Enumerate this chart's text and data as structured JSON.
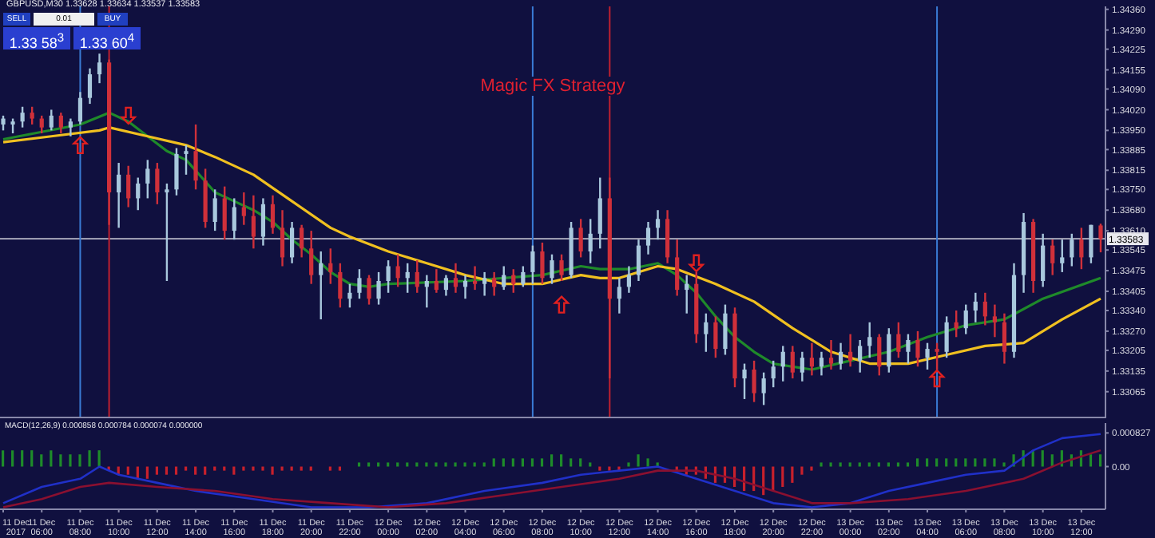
{
  "chart_data": [
    {
      "type": "candlestick",
      "title": "Magic FX Strategy",
      "annotations": [
        "GBPUSD,M30 1.33628 1.33634 1.33537 1.33583",
        "SELL",
        "0.01",
        "BUY",
        "1.33 58$^{3}$",
        "1.33 60$^{4}$"
      ],
      "x": [
        "2017-12-11T04:00",
        "2017-12-11T04:30",
        "2017-12-11T05:00",
        "2017-12-11T05:30",
        "2017-12-11T06:00",
        "2017-12-11T06:30",
        "2017-12-11T07:00",
        "2017-12-11T07:30",
        "2017-12-11T08:00",
        "2017-12-11T08:30",
        "2017-12-11T09:00",
        "2017-12-11T09:30",
        "2017-12-11T10:00",
        "2017-12-11T10:30",
        "2017-12-11T11:00",
        "2017-12-11T11:30",
        "2017-12-11T12:00",
        "2017-12-11T12:30",
        "2017-12-11T13:00",
        "2017-12-11T13:30",
        "2017-12-11T14:00",
        "2017-12-11T14:30",
        "2017-12-11T15:00",
        "2017-12-11T15:30",
        "2017-12-11T16:00",
        "2017-12-11T16:30",
        "2017-12-11T17:00",
        "2017-12-11T17:30",
        "2017-12-11T18:00",
        "2017-12-11T18:30",
        "2017-12-11T19:00",
        "2017-12-11T19:30",
        "2017-12-11T20:00",
        "2017-12-11T20:30",
        "2017-12-11T21:00",
        "2017-12-11T21:30",
        "2017-12-11T22:00",
        "2017-12-11T22:30",
        "2017-12-11T23:00",
        "2017-12-11T23:30",
        "2017-12-12T00:00",
        "2017-12-12T00:30",
        "2017-12-12T01:00",
        "2017-12-12T01:30",
        "2017-12-12T02:00",
        "2017-12-12T02:30",
        "2017-12-12T03:00",
        "2017-12-12T03:30",
        "2017-12-12T04:00",
        "2017-12-12T04:30",
        "2017-12-12T05:00",
        "2017-12-12T05:30",
        "2017-12-12T06:00",
        "2017-12-12T06:30",
        "2017-12-12T07:00",
        "2017-12-12T07:30",
        "2017-12-12T08:00",
        "2017-12-12T08:30",
        "2017-12-12T09:00",
        "2017-12-12T09:30",
        "2017-12-12T10:00",
        "2017-12-12T10:30",
        "2017-12-12T11:00",
        "2017-12-12T11:30",
        "2017-12-12T12:00",
        "2017-12-12T12:30",
        "2017-12-12T13:00",
        "2017-12-12T13:30",
        "2017-12-12T14:00",
        "2017-12-12T14:30",
        "2017-12-12T15:00",
        "2017-12-12T15:30",
        "2017-12-12T16:00",
        "2017-12-12T16:30",
        "2017-12-12T17:00",
        "2017-12-12T17:30",
        "2017-12-12T18:00",
        "2017-12-12T18:30",
        "2017-12-12T19:00",
        "2017-12-12T19:30",
        "2017-12-12T20:00",
        "2017-12-12T20:30",
        "2017-12-12T21:00",
        "2017-12-12T21:30",
        "2017-12-12T22:00",
        "2017-12-12T22:30",
        "2017-12-12T23:00",
        "2017-12-12T23:30",
        "2017-12-13T00:00",
        "2017-12-13T00:30",
        "2017-12-13T01:00",
        "2017-12-13T01:30",
        "2017-12-13T02:00",
        "2017-12-13T02:30",
        "2017-12-13T03:00",
        "2017-12-13T03:30",
        "2017-12-13T04:00",
        "2017-12-13T04:30",
        "2017-12-13T05:00",
        "2017-12-13T05:30",
        "2017-12-13T06:00",
        "2017-12-13T06:30",
        "2017-12-13T07:00",
        "2017-12-13T07:30",
        "2017-12-13T08:00",
        "2017-12-13T08:30",
        "2017-12-13T09:00",
        "2017-12-13T09:30",
        "2017-12-13T10:00",
        "2017-12-13T10:30",
        "2017-12-13T11:00",
        "2017-12-13T11:30",
        "2017-12-13T12:00",
        "2017-12-13T12:30",
        "2017-12-13T13:00"
      ],
      "ohlc": [
        [
          1.3397,
          1.34,
          1.3395,
          1.3399
        ],
        [
          1.3397,
          1.3399,
          1.3394,
          1.3398
        ],
        [
          1.3398,
          1.3403,
          1.3396,
          1.3401
        ],
        [
          1.3401,
          1.3403,
          1.3397,
          1.3399
        ],
        [
          1.3399,
          1.34,
          1.3394,
          1.3396
        ],
        [
          1.3396,
          1.3402,
          1.3395,
          1.34
        ],
        [
          1.34,
          1.3401,
          1.3394,
          1.3396
        ],
        [
          1.3396,
          1.3399,
          1.3393,
          1.3398
        ],
        [
          1.3398,
          1.3408,
          1.3397,
          1.3406
        ],
        [
          1.3406,
          1.3416,
          1.3404,
          1.3414
        ],
        [
          1.3414,
          1.3421,
          1.3411,
          1.3418
        ],
        [
          1.3418,
          1.3419,
          1.3363,
          1.3374
        ],
        [
          1.3374,
          1.3384,
          1.3362,
          1.338
        ],
        [
          1.338,
          1.3383,
          1.3369,
          1.3372
        ],
        [
          1.3372,
          1.3379,
          1.3368,
          1.3377
        ],
        [
          1.3377,
          1.3385,
          1.3372,
          1.3382
        ],
        [
          1.3382,
          1.3384,
          1.337,
          1.3374
        ],
        [
          1.3374,
          1.3377,
          1.3344,
          1.3375
        ],
        [
          1.3375,
          1.3389,
          1.3373,
          1.3387
        ],
        [
          1.3387,
          1.339,
          1.338,
          1.3388
        ],
        [
          1.3388,
          1.3397,
          1.3375,
          1.3378
        ],
        [
          1.3378,
          1.3382,
          1.3362,
          1.3364
        ],
        [
          1.3364,
          1.3375,
          1.3361,
          1.3372
        ],
        [
          1.3372,
          1.3376,
          1.3358,
          1.3361
        ],
        [
          1.3361,
          1.3372,
          1.3358,
          1.3369
        ],
        [
          1.3369,
          1.3374,
          1.3363,
          1.3366
        ],
        [
          1.3366,
          1.3373,
          1.3355,
          1.3359
        ],
        [
          1.3359,
          1.3372,
          1.3356,
          1.337
        ],
        [
          1.337,
          1.3373,
          1.336,
          1.3362
        ],
        [
          1.3362,
          1.3368,
          1.3349,
          1.3352
        ],
        [
          1.3352,
          1.3364,
          1.335,
          1.3362
        ],
        [
          1.3362,
          1.3363,
          1.3352,
          1.3355
        ],
        [
          1.3355,
          1.3361,
          1.3343,
          1.3346
        ],
        [
          1.3346,
          1.3354,
          1.3331,
          1.335
        ],
        [
          1.335,
          1.3355,
          1.3343,
          1.3347
        ],
        [
          1.3347,
          1.335,
          1.3335,
          1.3338
        ],
        [
          1.3338,
          1.3343,
          1.3335,
          1.334
        ],
        [
          1.334,
          1.3348,
          1.3338,
          1.3345
        ],
        [
          1.3345,
          1.3346,
          1.3336,
          1.3338
        ],
        [
          1.3338,
          1.3347,
          1.3336,
          1.3344
        ],
        [
          1.3344,
          1.3351,
          1.334,
          1.3349
        ],
        [
          1.3349,
          1.3353,
          1.3342,
          1.3345
        ],
        [
          1.3345,
          1.335,
          1.334,
          1.3347
        ],
        [
          1.3347,
          1.3351,
          1.334,
          1.3342
        ],
        [
          1.3342,
          1.3346,
          1.3335,
          1.3344
        ],
        [
          1.3344,
          1.3348,
          1.334,
          1.3341
        ],
        [
          1.3341,
          1.3346,
          1.3339,
          1.3345
        ],
        [
          1.3345,
          1.335,
          1.334,
          1.3342
        ],
        [
          1.3342,
          1.3346,
          1.3338,
          1.3344
        ],
        [
          1.3344,
          1.3349,
          1.3341,
          1.3343
        ],
        [
          1.3343,
          1.3347,
          1.3339,
          1.3345
        ],
        [
          1.3345,
          1.3347,
          1.3339,
          1.3342
        ],
        [
          1.3342,
          1.3349,
          1.3341,
          1.3346
        ],
        [
          1.3346,
          1.3348,
          1.334,
          1.3343
        ],
        [
          1.3343,
          1.3349,
          1.3342,
          1.3347
        ],
        [
          1.3347,
          1.3356,
          1.3343,
          1.3354
        ],
        [
          1.3354,
          1.3357,
          1.3343,
          1.3345
        ],
        [
          1.3345,
          1.3353,
          1.3343,
          1.3351
        ],
        [
          1.3351,
          1.3353,
          1.3344,
          1.3346
        ],
        [
          1.3346,
          1.3364,
          1.3345,
          1.3362
        ],
        [
          1.3362,
          1.3365,
          1.3352,
          1.3354
        ],
        [
          1.3354,
          1.3365,
          1.335,
          1.336
        ],
        [
          1.336,
          1.3379,
          1.3355,
          1.3372
        ],
        [
          1.3372,
          1.3379,
          1.3311,
          1.3338
        ],
        [
          1.3338,
          1.3345,
          1.3333,
          1.3342
        ],
        [
          1.3342,
          1.3349,
          1.334,
          1.3346
        ],
        [
          1.3346,
          1.3358,
          1.3344,
          1.3356
        ],
        [
          1.3356,
          1.3364,
          1.3353,
          1.3362
        ],
        [
          1.3362,
          1.3368,
          1.3358,
          1.3365
        ],
        [
          1.3365,
          1.3368,
          1.335,
          1.3352
        ],
        [
          1.3352,
          1.3358,
          1.3339,
          1.3341
        ],
        [
          1.3341,
          1.3346,
          1.3333,
          1.3343
        ],
        [
          1.3343,
          1.3347,
          1.3323,
          1.3326
        ],
        [
          1.3326,
          1.3333,
          1.332,
          1.333
        ],
        [
          1.333,
          1.3332,
          1.3318,
          1.3321
        ],
        [
          1.3321,
          1.3336,
          1.3319,
          1.3333
        ],
        [
          1.3333,
          1.3335,
          1.3308,
          1.3311
        ],
        [
          1.3311,
          1.3316,
          1.3304,
          1.3314
        ],
        [
          1.3314,
          1.3317,
          1.3303,
          1.3306
        ],
        [
          1.3306,
          1.3313,
          1.3302,
          1.3311
        ],
        [
          1.3311,
          1.3317,
          1.3308,
          1.3315
        ],
        [
          1.3315,
          1.3322,
          1.331,
          1.332
        ],
        [
          1.332,
          1.3322,
          1.3311,
          1.3313
        ],
        [
          1.3313,
          1.332,
          1.331,
          1.3318
        ],
        [
          1.3318,
          1.3323,
          1.3312,
          1.3315
        ],
        [
          1.3315,
          1.332,
          1.3312,
          1.3318
        ],
        [
          1.3318,
          1.3324,
          1.3314,
          1.3316
        ],
        [
          1.3316,
          1.3323,
          1.3314,
          1.332
        ],
        [
          1.332,
          1.3326,
          1.3315,
          1.3317
        ],
        [
          1.3317,
          1.3324,
          1.3313,
          1.3322
        ],
        [
          1.3322,
          1.333,
          1.3318,
          1.3325
        ],
        [
          1.3325,
          1.3326,
          1.3312,
          1.3315
        ],
        [
          1.3315,
          1.3328,
          1.3313,
          1.3326
        ],
        [
          1.3326,
          1.333,
          1.3318,
          1.332
        ],
        [
          1.332,
          1.3326,
          1.3316,
          1.3324
        ],
        [
          1.3324,
          1.3327,
          1.3315,
          1.3318
        ],
        [
          1.3318,
          1.3323,
          1.3314,
          1.3321
        ],
        [
          1.3321,
          1.3323,
          1.3314,
          1.332
        ],
        [
          1.332,
          1.3332,
          1.3318,
          1.333
        ],
        [
          1.333,
          1.3334,
          1.3325,
          1.3328
        ],
        [
          1.3328,
          1.3336,
          1.3326,
          1.3334
        ],
        [
          1.3334,
          1.334,
          1.333,
          1.3337
        ],
        [
          1.3337,
          1.334,
          1.3329,
          1.3332
        ],
        [
          1.3332,
          1.3336,
          1.3325,
          1.333
        ],
        [
          1.333,
          1.3333,
          1.3316,
          1.332
        ],
        [
          1.332,
          1.335,
          1.3318,
          1.3346
        ],
        [
          1.3346,
          1.3367,
          1.334,
          1.3364
        ],
        [
          1.3364,
          1.3365,
          1.334,
          1.3344
        ],
        [
          1.3344,
          1.336,
          1.3342,
          1.3356
        ],
        [
          1.3356,
          1.3358,
          1.3346,
          1.335
        ],
        [
          1.335,
          1.3358,
          1.3347,
          1.3352
        ],
        [
          1.3352,
          1.336,
          1.3349,
          1.3358
        ],
        [
          1.3358,
          1.3362,
          1.3348,
          1.3352
        ],
        [
          1.3352,
          1.3363,
          1.335,
          1.3363
        ],
        [
          1.33628,
          1.33634,
          1.33537,
          1.33583
        ]
      ],
      "series": [
        {
          "type": "line",
          "color": "#1f8a2a",
          "x": [
            "2017-12-11T04:00",
            "2017-12-11T08:00",
            "2017-12-11T09:30",
            "2017-12-11T10:30",
            "2017-12-11T11:30",
            "2017-12-11T12:30",
            "2017-12-11T13:30",
            "2017-12-11T15:00",
            "2017-12-11T16:00",
            "2017-12-11T17:00",
            "2017-12-11T18:00",
            "2017-12-11T19:00",
            "2017-12-11T20:00",
            "2017-12-11T21:00",
            "2017-12-11T22:00",
            "2017-12-11T23:00",
            "2017-12-12T00:00",
            "2017-12-12T04:00",
            "2017-12-12T08:00",
            "2017-12-12T10:00",
            "2017-12-12T11:00",
            "2017-12-12T12:30",
            "2017-12-12T14:00",
            "2017-12-12T15:00",
            "2017-12-12T16:00",
            "2017-12-12T17:00",
            "2017-12-12T18:00",
            "2017-12-12T19:00",
            "2017-12-12T20:00",
            "2017-12-12T22:00",
            "2017-12-13T00:00",
            "2017-12-13T02:00",
            "2017-12-13T04:00",
            "2017-12-13T06:00",
            "2017-12-13T08:00",
            "2017-12-13T10:00",
            "2017-12-13T13:00"
          ],
          "values": [
            1.3392,
            1.3397,
            1.3401,
            1.3398,
            1.3393,
            1.3388,
            1.3385,
            1.3374,
            1.3371,
            1.3368,
            1.3364,
            1.3358,
            1.3353,
            1.3347,
            1.3343,
            1.3342,
            1.3343,
            1.3344,
            1.3346,
            1.3349,
            1.3348,
            1.3348,
            1.335,
            1.3346,
            1.334,
            1.3332,
            1.3325,
            1.332,
            1.3316,
            1.3314,
            1.3317,
            1.332,
            1.3325,
            1.3329,
            1.3331,
            1.3338,
            1.3345
          ]
        },
        {
          "type": "line",
          "color": "#f0c020",
          "x": [
            "2017-12-11T04:00",
            "2017-12-11T06:30",
            "2017-12-11T09:00",
            "2017-12-11T09:30",
            "2017-12-11T11:30",
            "2017-12-11T13:30",
            "2017-12-11T15:00",
            "2017-12-11T17:00",
            "2017-12-11T19:00",
            "2017-12-11T21:00",
            "2017-12-11T22:00",
            "2017-12-12T00:00",
            "2017-12-12T02:00",
            "2017-12-12T04:00",
            "2017-12-12T06:00",
            "2017-12-12T08:00",
            "2017-12-12T10:00",
            "2017-12-12T11:00",
            "2017-12-12T12:00",
            "2017-12-12T14:00",
            "2017-12-12T15:00",
            "2017-12-12T17:00",
            "2017-12-12T19:00",
            "2017-12-12T21:00",
            "2017-12-12T23:00",
            "2017-12-13T01:00",
            "2017-12-13T03:00",
            "2017-12-13T05:00",
            "2017-12-13T07:00",
            "2017-12-13T09:00",
            "2017-12-13T11:00",
            "2017-12-13T13:00"
          ],
          "values": [
            1.3391,
            1.3393,
            1.3395,
            1.3396,
            1.3393,
            1.339,
            1.3386,
            1.338,
            1.3371,
            1.3362,
            1.3359,
            1.3354,
            1.335,
            1.3346,
            1.3343,
            1.3343,
            1.3346,
            1.3345,
            1.3345,
            1.3349,
            1.3348,
            1.3343,
            1.3337,
            1.3328,
            1.332,
            1.3316,
            1.3316,
            1.3319,
            1.3322,
            1.3323,
            1.3331,
            1.3338
          ]
        },
        {
          "type": "scatter",
          "color": "#e02020",
          "marker": "triangle",
          "x": [
            "2017-12-11T08:00",
            "2017-12-11T10:30",
            "2017-12-12T09:00",
            "2017-12-12T16:00",
            "2017-12-13T04:30"
          ],
          "values": [
            1.339,
            1.34,
            1.3336,
            1.335,
            1.3311
          ]
        }
      ],
      "xlim": [
        "2017-12-11T03:50",
        "2017-12-13T13:15"
      ],
      "ylim": [
        1.32975,
        1.3437
      ],
      "yticks": [
        {
          "value": 1.3436,
          "label": "1.34360"
        },
        {
          "value": 1.3429,
          "label": "1.34290"
        },
        1.34225,
        1.34155,
        {
          "value": 1.3409,
          "label": "1.34090"
        },
        {
          "value": 1.3402,
          "label": "1.34020"
        },
        {
          "value": 1.3395,
          "label": "1.33950"
        },
        1.33885,
        1.33815,
        {
          "value": 1.3375,
          "label": "1.33750"
        },
        {
          "value": 1.3368,
          "label": "1.33680"
        },
        {
          "value": 1.3361,
          "label": "1.33610"
        },
        1.33545,
        1.33475,
        1.33405,
        {
          "value": 1.3334,
          "label": "1.33340"
        },
        {
          "value": 1.3327,
          "label": "1.33270"
        },
        1.33205,
        1.33135,
        1.33065
      ],
      "ref_lines": [
        {
          "axis": "y",
          "value": 1.33583,
          "label": "1.33583",
          "color": "#b8b8c8"
        },
        {
          "axis": "x",
          "value": "2017-12-11T08:00",
          "color": "#3a7bd5"
        },
        {
          "axis": "x",
          "value": "2017-12-11T09:30",
          "color": "#c02030"
        },
        {
          "axis": "x",
          "value": "2017-12-12T07:30",
          "color": "#3a7bd5"
        },
        {
          "axis": "x",
          "value": "2017-12-12T11:30",
          "color": "#c02030"
        },
        {
          "axis": "x",
          "value": "2017-12-13T04:30",
          "color": "#3a7bd5"
        }
      ],
      "tick_labels": "y"
    },
    {
      "type": "bar",
      "annotations": [
        "MACD(12,26,9) 0.000858 0.000784 0.000074 0.000000"
      ],
      "x": [
        "2017-12-11T04:00",
        "2017-12-11T04:30",
        "2017-12-11T05:00",
        "2017-12-11T05:30",
        "2017-12-11T06:00",
        "2017-12-11T06:30",
        "2017-12-11T07:00",
        "2017-12-11T07:30",
        "2017-12-11T08:00",
        "2017-12-11T08:30",
        "2017-12-11T09:00",
        "2017-12-11T09:30",
        "2017-12-11T10:00",
        "2017-12-11T10:30",
        "2017-12-11T11:00",
        "2017-12-11T11:30",
        "2017-12-11T12:00",
        "2017-12-11T12:30",
        "2017-12-11T13:00",
        "2017-12-11T13:30",
        "2017-12-11T14:00",
        "2017-12-11T14:30",
        "2017-12-11T15:00",
        "2017-12-11T15:30",
        "2017-12-11T16:00",
        "2017-12-11T16:30",
        "2017-12-11T17:00",
        "2017-12-11T17:30",
        "2017-12-11T18:00",
        "2017-12-11T18:30",
        "2017-12-11T19:00",
        "2017-12-11T19:30",
        "2017-12-11T20:00",
        "2017-12-11T20:30",
        "2017-12-11T21:00",
        "2017-12-11T21:30",
        "2017-12-11T22:00",
        "2017-12-11T22:30",
        "2017-12-11T23:00",
        "2017-12-11T23:30",
        "2017-12-12T00:00",
        "2017-12-12T00:30",
        "2017-12-12T01:00",
        "2017-12-12T01:30",
        "2017-12-12T02:00",
        "2017-12-12T02:30",
        "2017-12-12T03:00",
        "2017-12-12T03:30",
        "2017-12-12T04:00",
        "2017-12-12T04:30",
        "2017-12-12T05:00",
        "2017-12-12T05:30",
        "2017-12-12T06:00",
        "2017-12-12T06:30",
        "2017-12-12T07:00",
        "2017-12-12T07:30",
        "2017-12-12T08:00",
        "2017-12-12T08:30",
        "2017-12-12T09:00",
        "2017-12-12T09:30",
        "2017-12-12T10:00",
        "2017-12-12T10:30",
        "2017-12-12T11:00",
        "2017-12-12T11:30",
        "2017-12-12T12:00",
        "2017-12-12T12:30",
        "2017-12-12T13:00",
        "2017-12-12T13:30",
        "2017-12-12T14:00",
        "2017-12-12T14:30",
        "2017-12-12T15:00",
        "2017-12-12T15:30",
        "2017-12-12T16:00",
        "2017-12-12T16:30",
        "2017-12-12T17:00",
        "2017-12-12T17:30",
        "2017-12-12T18:00",
        "2017-12-12T18:30",
        "2017-12-12T19:00",
        "2017-12-12T19:30",
        "2017-12-12T20:00",
        "2017-12-12T20:30",
        "2017-12-12T21:00",
        "2017-12-12T21:30",
        "2017-12-12T22:00",
        "2017-12-12T22:30",
        "2017-12-12T23:00",
        "2017-12-12T23:30",
        "2017-12-13T00:00",
        "2017-12-13T00:30",
        "2017-12-13T01:00",
        "2017-12-13T01:30",
        "2017-12-13T02:00",
        "2017-12-13T02:30",
        "2017-12-13T03:00",
        "2017-12-13T03:30",
        "2017-12-13T04:00",
        "2017-12-13T04:30",
        "2017-12-13T05:00",
        "2017-12-13T05:30",
        "2017-12-13T06:00",
        "2017-12-13T06:30",
        "2017-12-13T07:00",
        "2017-12-13T07:30",
        "2017-12-13T08:00",
        "2017-12-13T08:30",
        "2017-12-13T09:00",
        "2017-12-13T09:30",
        "2017-12-13T10:00",
        "2017-12-13T10:30",
        "2017-12-13T11:00",
        "2017-12-13T11:30",
        "2017-12-13T12:00",
        "2017-12-13T12:30",
        "2017-12-13T13:00"
      ],
      "series": [
        {
          "type": "bar",
          "colors": [
            "#1e8c2a",
            "#1e8c2a",
            "#1e8c2a",
            "#1e8c2a",
            "#1e8c2a",
            "#1e8c2a",
            "#1e8c2a",
            "#1e8c2a",
            "#1e8c2a",
            "#1e8c2a",
            "#1e8c2a",
            "#c8202c",
            "#c8202c",
            "#c8202c",
            "#c8202c",
            "#c8202c",
            "#c8202c",
            "#c8202c",
            "#c8202c",
            "#c8202c",
            "#c8202c",
            "#c8202c",
            "#c8202c",
            "#c8202c",
            "#c8202c",
            "#c8202c",
            "#c8202c",
            "#c8202c",
            "#c8202c",
            "#c8202c",
            "#c8202c",
            "#c8202c",
            "#c8202c",
            "#1e8c2a",
            "#c8202c",
            "#c8202c",
            "#1e8c2a",
            "#1e8c2a",
            "#1e8c2a",
            "#1e8c2a",
            "#1e8c2a",
            "#1e8c2a",
            "#1e8c2a",
            "#1e8c2a",
            "#1e8c2a",
            "#1e8c2a",
            "#1e8c2a",
            "#1e8c2a",
            "#1e8c2a",
            "#1e8c2a",
            "#1e8c2a",
            "#1e8c2a",
            "#1e8c2a",
            "#1e8c2a",
            "#1e8c2a",
            "#1e8c2a",
            "#1e8c2a",
            "#1e8c2a",
            "#1e8c2a",
            "#1e8c2a",
            "#1e8c2a",
            "#1e8c2a",
            "#c8202c",
            "#c8202c",
            "#c8202c",
            "#1e8c2a",
            "#1e8c2a",
            "#1e8c2a",
            "#1e8c2a",
            "#1e8c2a",
            "#c8202c",
            "#c8202c",
            "#c8202c",
            "#c8202c",
            "#c8202c",
            "#c8202c",
            "#c8202c",
            "#c8202c",
            "#c8202c",
            "#c8202c",
            "#c8202c",
            "#c8202c",
            "#c8202c",
            "#c8202c",
            "#c8202c",
            "#1e8c2a",
            "#1e8c2a",
            "#1e8c2a",
            "#1e8c2a",
            "#1e8c2a",
            "#1e8c2a",
            "#1e8c2a",
            "#1e8c2a",
            "#1e8c2a",
            "#1e8c2a",
            "#1e8c2a",
            "#1e8c2a",
            "#1e8c2a",
            "#1e8c2a",
            "#1e8c2a",
            "#1e8c2a",
            "#1e8c2a",
            "#1e8c2a",
            "#1e8c2a",
            "#1e8c2a",
            "#1e8c2a",
            "#1e8c2a",
            "#1e8c2a",
            "#1e8c2a",
            "#1e8c2a",
            "#1e8c2a",
            "#1e8c2a",
            "#1e8c2a",
            "#1e8c2a",
            "#1e8c2a"
          ],
          "values": [
            0.0004,
            0.0004,
            0.0004,
            0.0004,
            0.0003,
            0.0004,
            0.0003,
            0.0003,
            0.0003,
            0.0004,
            0.0004,
            -0.0001,
            -0.0002,
            -0.0002,
            -0.0003,
            -0.0003,
            -0.0002,
            -0.0002,
            -0.0002,
            -0.0001,
            -0.0002,
            -0.0002,
            -0.0001,
            -0.0001,
            -0.0002,
            -0.0001,
            -0.0001,
            -0.0001,
            -0.0002,
            -0.0001,
            -0.0001,
            -0.0001,
            -0.0001,
            0,
            -0.0001,
            -0.0001,
            0,
            0.0001,
            0.0001,
            0.0001,
            0.0001,
            0.0001,
            0.0001,
            0.0001,
            0.0001,
            0.0001,
            0.0001,
            0.0001,
            0.0001,
            0.0001,
            0.0001,
            0.0002,
            0.0002,
            0.0002,
            0.0002,
            0.0002,
            0.0002,
            0.0003,
            0.0003,
            0.0002,
            0.0002,
            0.0001,
            -0.0001,
            -0.0001,
            -0.0001,
            0.0001,
            0.0003,
            0.0002,
            0.0001,
            0,
            -0.0001,
            -0.0002,
            -0.0002,
            -0.0003,
            -0.0004,
            -0.0004,
            -0.0005,
            -0.0006,
            -0.0006,
            -0.0007,
            -0.0006,
            -0.0005,
            -0.0004,
            -0.0002,
            -0.0001,
            0.0001,
            0.0001,
            0.0001,
            0.0001,
            0.0001,
            0.0001,
            0.0001,
            0.0001,
            0.0001,
            0.0001,
            0.0002,
            0.0002,
            0.0002,
            0.0002,
            0.0002,
            0.0002,
            0.0002,
            0.0002,
            0.0002,
            0.0001,
            0.0003,
            0.0004,
            0.0004,
            0.0004,
            0.0003,
            0.0004,
            0.0003,
            0.0004,
            0.0003,
            0.0003
          ]
        },
        {
          "type": "line",
          "color": "#2030c8",
          "x": [
            "2017-12-11T04:00",
            "2017-12-11T06:00",
            "2017-12-11T08:00",
            "2017-12-11T09:00",
            "2017-12-11T10:00",
            "2017-12-11T12:00",
            "2017-12-11T14:00",
            "2017-12-11T17:00",
            "2017-12-11T20:00",
            "2017-12-11T23:00",
            "2017-12-12T02:00",
            "2017-12-12T05:00",
            "2017-12-12T08:00",
            "2017-12-12T10:00",
            "2017-12-12T12:00",
            "2017-12-12T14:00",
            "2017-12-12T16:00",
            "2017-12-12T18:00",
            "2017-12-12T20:00",
            "2017-12-12T22:00",
            "2017-12-13T00:00",
            "2017-12-13T02:00",
            "2017-12-13T04:00",
            "2017-12-13T06:00",
            "2017-12-13T08:00",
            "2017-12-13T09:30",
            "2017-12-13T11:00",
            "2017-12-13T13:00"
          ],
          "values": [
            -0.0009,
            -0.0005,
            -0.0003,
            0,
            -0.0002,
            -0.0004,
            -0.0006,
            -0.0008,
            -0.001,
            -0.001,
            -0.0009,
            -0.0006,
            -0.0004,
            -0.0002,
            -0.0001,
            0,
            -0.0003,
            -0.0006,
            -0.0009,
            -0.001,
            -0.0009,
            -0.0006,
            -0.0004,
            -0.0002,
            -0.0001,
            0.0004,
            0.0007,
            0.0008
          ]
        },
        {
          "type": "line",
          "color": "#8a1030",
          "x": [
            "2017-12-11T04:00",
            "2017-12-11T06:00",
            "2017-12-11T08:00",
            "2017-12-11T09:30",
            "2017-12-11T12:00",
            "2017-12-11T15:00",
            "2017-12-11T18:00",
            "2017-12-11T21:00",
            "2017-12-12T00:00",
            "2017-12-12T03:00",
            "2017-12-12T06:00",
            "2017-12-12T09:00",
            "2017-12-12T12:00",
            "2017-12-12T14:00",
            "2017-12-12T16:00",
            "2017-12-12T18:00",
            "2017-12-12T20:00",
            "2017-12-12T22:00",
            "2017-12-13T00:00",
            "2017-12-13T03:00",
            "2017-12-13T06:00",
            "2017-12-13T09:00",
            "2017-12-13T11:00",
            "2017-12-13T13:00"
          ],
          "values": [
            -0.001,
            -0.0008,
            -0.0005,
            -0.0004,
            -0.0005,
            -0.0006,
            -0.0008,
            -0.0009,
            -0.001,
            -0.0009,
            -0.0007,
            -0.0005,
            -0.0003,
            -0.0001,
            -0.0001,
            -0.0003,
            -0.0006,
            -0.0009,
            -0.0009,
            -0.0008,
            -0.0006,
            -0.0003,
            0.0001,
            0.0004
          ]
        }
      ],
      "xlim": [
        "2017-12-11T03:50",
        "2017-12-13T13:15"
      ],
      "xticks": [
        {
          "value": "2017-12-11T04:00",
          "label": "11 Dec 2017"
        },
        {
          "value": "2017-12-11T06:00",
          "label": "11 Dec 06:00"
        },
        {
          "value": "2017-12-11T08:00",
          "label": "11 Dec 08:00"
        },
        {
          "value": "2017-12-11T10:00",
          "label": "11 Dec 10:00"
        },
        {
          "value": "2017-12-11T12:00",
          "label": "11 Dec 12:00"
        },
        {
          "value": "2017-12-11T14:00",
          "label": "11 Dec 14:00"
        },
        {
          "value": "2017-12-11T16:00",
          "label": "11 Dec 16:00"
        },
        {
          "value": "2017-12-11T18:00",
          "label": "11 Dec 18:00"
        },
        {
          "value": "2017-12-11T20:00",
          "label": "11 Dec 20:00"
        },
        {
          "value": "2017-12-11T22:00",
          "label": "11 Dec 22:00"
        },
        {
          "value": "2017-12-12T00:00",
          "label": "12 Dec 00:00"
        },
        {
          "value": "2017-12-12T02:00",
          "label": "12 Dec 02:00"
        },
        {
          "value": "2017-12-12T04:00",
          "label": "12 Dec 04:00"
        },
        {
          "value": "2017-12-12T06:00",
          "label": "12 Dec 06:00"
        },
        {
          "value": "2017-12-12T08:00",
          "label": "12 Dec 08:00"
        },
        {
          "value": "2017-12-12T10:00",
          "label": "12 Dec 10:00"
        },
        {
          "value": "2017-12-12T12:00",
          "label": "12 Dec 12:00"
        },
        {
          "value": "2017-12-12T14:00",
          "label": "12 Dec 14:00"
        },
        {
          "value": "2017-12-12T16:00",
          "label": "12 Dec 16:00"
        },
        {
          "value": "2017-12-12T18:00",
          "label": "12 Dec 18:00"
        },
        {
          "value": "2017-12-12T20:00",
          "label": "12 Dec 20:00"
        },
        {
          "value": "2017-12-12T22:00",
          "label": "12 Dec 22:00"
        },
        {
          "value": "2017-12-13T00:00",
          "label": "13 Dec 00:00"
        },
        {
          "value": "2017-12-13T02:00",
          "label": "13 Dec 02:00"
        },
        {
          "value": "2017-12-13T04:00",
          "label": "13 Dec 04:00"
        },
        {
          "value": "2017-12-13T06:00",
          "label": "13 Dec 06:00"
        },
        {
          "value": "2017-12-13T08:00",
          "label": "13 Dec 08:00"
        },
        {
          "value": "2017-12-13T10:00",
          "label": "13 Dec 10:00"
        },
        {
          "value": "2017-12-13T12:00",
          "label": "13 Dec 12:00"
        }
      ],
      "ylim": [
        -0.00105,
        0.00107
      ],
      "yticks": [
        0.000827,
        {
          "value": 0,
          "label": "0.00"
        }
      ]
    }
  ]
}
